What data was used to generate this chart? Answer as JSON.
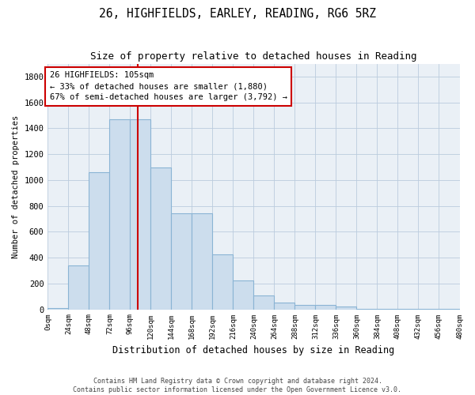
{
  "title1": "26, HIGHFIELDS, EARLEY, READING, RG6 5RZ",
  "title2": "Size of property relative to detached houses in Reading",
  "xlabel": "Distribution of detached houses by size in Reading",
  "ylabel": "Number of detached properties",
  "bin_edges": [
    0,
    24,
    48,
    72,
    96,
    120,
    144,
    168,
    192,
    216,
    240,
    264,
    288,
    312,
    336,
    360,
    384,
    408,
    432,
    456,
    480
  ],
  "bar_heights": [
    10,
    340,
    1060,
    1470,
    1470,
    1100,
    740,
    740,
    425,
    225,
    110,
    50,
    35,
    35,
    20,
    5,
    5,
    3,
    2,
    1
  ],
  "bar_color": "#ccdded",
  "bar_edge_color": "#8ab4d4",
  "grid_color": "#bbccdd",
  "background_color": "#eaf0f6",
  "marker_x": 105,
  "marker_color": "#cc0000",
  "annotation_text": "26 HIGHFIELDS: 105sqm\n← 33% of detached houses are smaller (1,880)\n67% of semi-detached houses are larger (3,792) →",
  "annotation_box_color": "#ffffff",
  "annotation_box_edge": "#cc0000",
  "footer1": "Contains HM Land Registry data © Crown copyright and database right 2024.",
  "footer2": "Contains public sector information licensed under the Open Government Licence v3.0.",
  "ylim": [
    0,
    1900
  ],
  "yticks": [
    0,
    200,
    400,
    600,
    800,
    1000,
    1200,
    1400,
    1600,
    1800
  ],
  "xlim": [
    0,
    480
  ],
  "figsize": [
    6.0,
    5.0
  ],
  "dpi": 100
}
